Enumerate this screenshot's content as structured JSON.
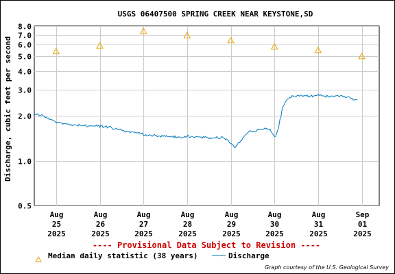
{
  "chart_data": {
    "type": "line",
    "scale": "log",
    "title": "USGS 06407500 SPRING CREEK NEAR KEYSTONE,SD",
    "ylabel": "Discharge, cubic feet per second",
    "ylim": [
      0.5,
      8.0
    ],
    "y_ticks": [
      "0.5",
      "1.0",
      "2.0",
      "3.0",
      "4.0",
      "5.0",
      "6.0",
      "7.0",
      "8.0"
    ],
    "x_tick_labels": [
      [
        "Aug",
        "25",
        "2025"
      ],
      [
        "Aug",
        "26",
        "2025"
      ],
      [
        "Aug",
        "27",
        "2025"
      ],
      [
        "Aug",
        "28",
        "2025"
      ],
      [
        "Aug",
        "29",
        "2025"
      ],
      [
        "Aug",
        "30",
        "2025"
      ],
      [
        "Aug",
        "31",
        "2025"
      ],
      [
        "Sep",
        "01",
        "2025"
      ]
    ],
    "x_unit": "days from Aug 25 2025 00:00",
    "xlim": [
      -0.5,
      7.4
    ],
    "grid": true,
    "series": [
      {
        "name": "Median daily statistic (38 years)",
        "marker": "triangle",
        "color": "#e8a000",
        "points": [
          [
            0,
            5.4
          ],
          [
            1,
            5.9
          ],
          [
            2,
            7.4
          ],
          [
            3,
            6.9
          ],
          [
            4,
            6.4
          ],
          [
            5,
            5.8
          ],
          [
            6,
            5.5
          ],
          [
            7,
            5.0
          ]
        ]
      },
      {
        "name": "Discharge",
        "color": "#0077bb",
        "points": [
          [
            -0.5,
            2.05
          ],
          [
            -0.3,
            2.0
          ],
          [
            -0.2,
            1.95
          ],
          [
            -0.1,
            1.88
          ],
          [
            0.0,
            1.82
          ],
          [
            0.2,
            1.77
          ],
          [
            0.4,
            1.74
          ],
          [
            0.6,
            1.72
          ],
          [
            0.8,
            1.71
          ],
          [
            1.0,
            1.7
          ],
          [
            1.2,
            1.68
          ],
          [
            1.4,
            1.62
          ],
          [
            1.6,
            1.58
          ],
          [
            1.8,
            1.55
          ],
          [
            2.0,
            1.5
          ],
          [
            2.2,
            1.48
          ],
          [
            2.5,
            1.45
          ],
          [
            2.8,
            1.44
          ],
          [
            3.0,
            1.46
          ],
          [
            3.2,
            1.45
          ],
          [
            3.4,
            1.43
          ],
          [
            3.6,
            1.42
          ],
          [
            3.8,
            1.43
          ],
          [
            3.9,
            1.4
          ],
          [
            4.0,
            1.31
          ],
          [
            4.1,
            1.24
          ],
          [
            4.2,
            1.32
          ],
          [
            4.3,
            1.45
          ],
          [
            4.4,
            1.55
          ],
          [
            4.6,
            1.6
          ],
          [
            4.8,
            1.63
          ],
          [
            4.9,
            1.6
          ],
          [
            5.0,
            1.45
          ],
          [
            5.05,
            1.5
          ],
          [
            5.1,
            1.7
          ],
          [
            5.15,
            2.0
          ],
          [
            5.2,
            2.35
          ],
          [
            5.3,
            2.6
          ],
          [
            5.4,
            2.72
          ],
          [
            5.6,
            2.75
          ],
          [
            5.8,
            2.7
          ],
          [
            6.0,
            2.74
          ],
          [
            6.2,
            2.7
          ],
          [
            6.4,
            2.72
          ],
          [
            6.5,
            2.75
          ],
          [
            6.6,
            2.7
          ],
          [
            6.7,
            2.68
          ],
          [
            6.8,
            2.6
          ],
          [
            6.9,
            2.55
          ]
        ]
      }
    ],
    "provisional_note": "---- Provisional Data Subject to Revision ----",
    "credit": "Graph courtesy of the U.S. Geological Survey"
  }
}
